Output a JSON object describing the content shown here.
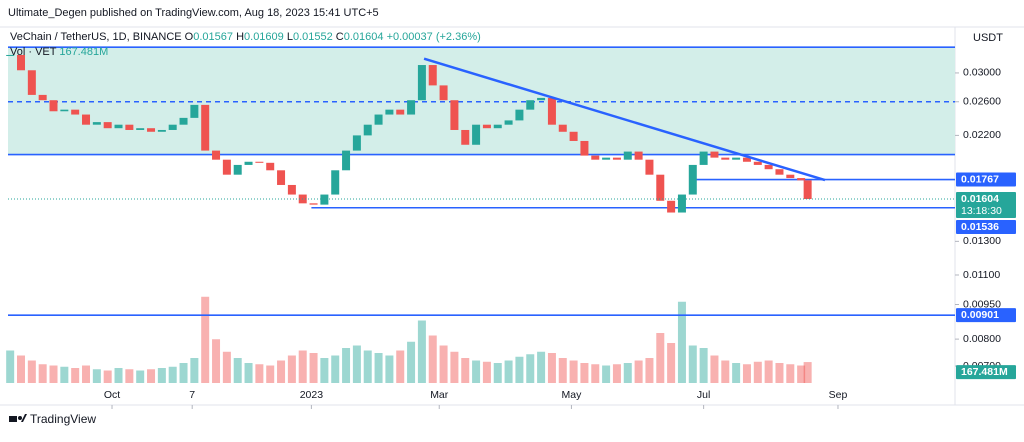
{
  "header": {
    "text": "Ultimate_Degen published on TradingView.com, Aug 18, 2023 15:41 UTC+5"
  },
  "footer": {
    "text": "TradingView"
  },
  "chart_data": {
    "type": "candlestick",
    "title": "VeChain / TetherUS, 1D, BINANCE",
    "ohlc": [
      {
        "label": "O",
        "value": 0.01567
      },
      {
        "label": "H",
        "value": 0.01609
      },
      {
        "label": "L",
        "value": 0.01552
      },
      {
        "label": "C",
        "value": 0.01604
      }
    ],
    "change": "+0.00037 (+2.36%)",
    "currency": "USDT",
    "countdown": "13:18:30",
    "log_scale": true,
    "up_color": "#26a69a",
    "down_color": "#ef5350",
    "x": [
      0,
      5,
      10,
      15,
      20,
      25,
      30,
      35,
      40,
      45,
      50,
      55,
      60,
      65,
      70,
      75,
      80,
      85,
      90,
      95,
      100,
      105,
      110,
      115,
      120,
      125,
      130,
      135,
      140,
      145,
      150,
      155,
      160,
      165,
      170,
      175,
      180,
      185,
      190,
      195,
      200,
      205,
      210,
      215,
      220,
      225,
      230,
      235,
      240,
      245,
      250,
      255,
      260,
      265,
      270,
      275,
      280,
      285,
      290,
      295,
      300,
      305,
      310,
      315,
      320,
      325,
      330,
      335,
      340,
      345,
      350,
      355,
      360,
      365,
      368
    ],
    "series": [
      {
        "name": "Close",
        "values": [
          0.0328,
          0.0304,
          0.0269,
          0.0262,
          0.0248,
          0.025,
          0.0244,
          0.0232,
          0.0235,
          0.0228,
          0.0232,
          0.0226,
          0.0228,
          0.0224,
          0.0226,
          0.0232,
          0.024,
          0.0256,
          0.0204,
          0.0195,
          0.0181,
          0.019,
          0.0193,
          0.0192,
          0.0185,
          0.0172,
          0.0164,
          0.0157,
          0.0156,
          0.0164,
          0.0185,
          0.0204,
          0.022,
          0.0232,
          0.0244,
          0.025,
          0.0244,
          0.0262,
          0.0312,
          0.0282,
          0.0262,
          0.0226,
          0.021,
          0.0232,
          0.0228,
          0.0232,
          0.0237,
          0.025,
          0.0262,
          0.0265,
          0.0232,
          0.0224,
          0.0214,
          0.0199,
          0.0195,
          0.0197,
          0.0195,
          0.0203,
          0.0195,
          0.0181,
          0.0159,
          0.015,
          0.0164,
          0.019,
          0.0203,
          0.0197,
          0.0195,
          0.0197,
          0.0193,
          0.019,
          0.0186,
          0.0181,
          0.0178,
          0.0176,
          0.01604
        ]
      }
    ],
    "volume": {
      "name": "Vol · VET",
      "last_label": "167.481M",
      "ylim": [
        0,
        800
      ],
      "values": [
        260,
        220,
        180,
        150,
        140,
        130,
        120,
        140,
        110,
        100,
        120,
        110,
        100,
        110,
        120,
        130,
        160,
        200,
        690,
        350,
        250,
        200,
        160,
        150,
        140,
        180,
        220,
        260,
        240,
        200,
        220,
        280,
        300,
        260,
        240,
        220,
        260,
        330,
        500,
        380,
        300,
        250,
        200,
        180,
        170,
        160,
        180,
        210,
        230,
        250,
        240,
        200,
        180,
        160,
        150,
        140,
        150,
        160,
        180,
        200,
        400,
        320,
        650,
        300,
        280,
        220,
        180,
        160,
        150,
        170,
        180,
        160,
        150,
        140,
        167.481
      ]
    },
    "xlim": [
      -1,
      436
    ],
    "xticks": [
      {
        "value": 47,
        "label": "Oct"
      },
      {
        "value": 84,
        "label": "7"
      },
      {
        "value": 139,
        "label": "2023"
      },
      {
        "value": 198,
        "label": "Mar"
      },
      {
        "value": 259,
        "label": "May"
      },
      {
        "value": 320,
        "label": "Jul"
      },
      {
        "value": 382,
        "label": "Sep"
      }
    ],
    "ylim": [
      0.00637,
      0.0375
    ],
    "yticks": [
      {
        "value": 0.03,
        "label": "0.03000"
      },
      {
        "value": 0.026,
        "label": "0.02600"
      },
      {
        "value": 0.022,
        "label": "0.02200"
      },
      {
        "value": 0.013,
        "label": "0.01300"
      },
      {
        "value": 0.011,
        "label": "0.01100"
      },
      {
        "value": 0.0095,
        "label": "0.00950"
      },
      {
        "value": 0.008,
        "label": "0.00800"
      },
      {
        "value": 0.007,
        "label": "0.00700"
      }
    ],
    "zone": {
      "from": 0.02,
      "to": 0.0341,
      "color": "#d3eee9"
    },
    "levels": [
      {
        "value": 0.0341,
        "style": "solid"
      },
      {
        "value": 0.026,
        "style": "dashed"
      },
      {
        "value": 0.02,
        "style": "solid"
      },
      {
        "value": 0.01767,
        "label": "0.01767",
        "style": "solid",
        "from": 316
      },
      {
        "value": 0.01536,
        "label": "0.01536",
        "style": "solid",
        "from": 139
      },
      {
        "value": 0.00901,
        "label": "0.00901",
        "style": "solid"
      }
    ],
    "trendline": {
      "x": [
        191,
        376
      ],
      "values": [
        0.0322,
        0.01762
      ]
    },
    "line_color": "#2962ff"
  }
}
